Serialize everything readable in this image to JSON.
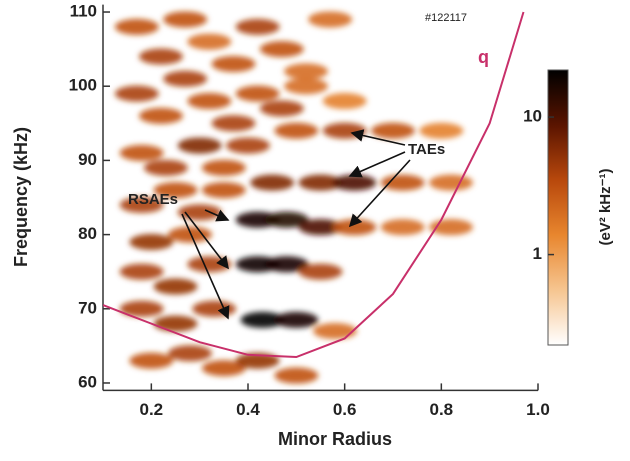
{
  "chart_data": {
    "type": "heatmap",
    "run_label": "#122117",
    "x_label": "Minor  Radius",
    "y_label": "Frequency  (kHz)",
    "annotations": [
      "RSAEs",
      "TAEs"
    ],
    "xlim": [
      0.1,
      1.0
    ],
    "xticks": [
      0.2,
      0.4,
      0.6,
      0.8,
      {
        "value": 1.0,
        "label": "1.0"
      }
    ],
    "ylim": [
      59,
      111
    ],
    "yticks": [
      60,
      70,
      80,
      90,
      100,
      110
    ],
    "spots": {
      "x": [
        0.17,
        0.22,
        0.27,
        0.32,
        0.37,
        0.42,
        0.47,
        0.52,
        0.57,
        0.17,
        0.22,
        0.27,
        0.32,
        0.37,
        0.42,
        0.47,
        0.52,
        0.6,
        0.18,
        0.23,
        0.3,
        0.35,
        0.4,
        0.5,
        0.6,
        0.7,
        0.8,
        0.18,
        0.25,
        0.3,
        0.35,
        0.45,
        0.55,
        0.62,
        0.72,
        0.82,
        0.2,
        0.28,
        0.42,
        0.48,
        0.55,
        0.62,
        0.72,
        0.82,
        0.18,
        0.25,
        0.32,
        0.42,
        0.48,
        0.55,
        0.18,
        0.25,
        0.33,
        0.43,
        0.5,
        0.58,
        0.2,
        0.28,
        0.35,
        0.42,
        0.5
      ],
      "y": [
        108,
        104,
        109,
        106,
        103,
        108,
        105,
        102,
        109,
        99,
        96,
        101,
        98,
        95,
        99,
        97,
        100,
        98,
        91,
        89,
        92,
        89,
        92,
        94,
        94,
        94,
        94,
        84,
        86,
        83,
        86,
        87,
        87,
        87,
        87,
        87,
        79,
        80,
        82,
        82,
        81,
        81,
        81,
        81,
        75,
        73,
        76,
        76,
        76,
        75,
        70,
        68,
        70,
        68.5,
        68.5,
        67,
        63,
        64,
        62,
        63,
        61
      ],
      "z": [
        3,
        4,
        3,
        2,
        3,
        4,
        3,
        2,
        2,
        4,
        3,
        4,
        3,
        4,
        3,
        4,
        2,
        1.5,
        3,
        4,
        6,
        3,
        4,
        3,
        4,
        3,
        1.5,
        4,
        3,
        4,
        3,
        6,
        6,
        10,
        3,
        2,
        5,
        3,
        18,
        15,
        10,
        3,
        2,
        2,
        4,
        5,
        4,
        20,
        18,
        4,
        4,
        5,
        4,
        22,
        18,
        2,
        3,
        4,
        3,
        5,
        3
      ]
    },
    "colorbar": {
      "label": "(eV² kHz⁻¹)",
      "log": true,
      "lim": [
        0.22,
        22
      ],
      "ticks": [
        1,
        10
      ],
      "colormap": [
        "#ffffff",
        "#f6c590",
        "#e8862e",
        "#b8480c",
        "#5a1400",
        "#000000"
      ]
    },
    "series": [
      {
        "name": "q",
        "color": "#c8306a",
        "x": [
          0.1,
          0.2,
          0.3,
          0.4,
          0.5,
          0.6,
          0.7,
          0.8,
          0.9,
          0.97
        ],
        "values": [
          70.5,
          68,
          65.5,
          63.8,
          63.5,
          66,
          72,
          82,
          95,
          110
        ]
      }
    ]
  }
}
